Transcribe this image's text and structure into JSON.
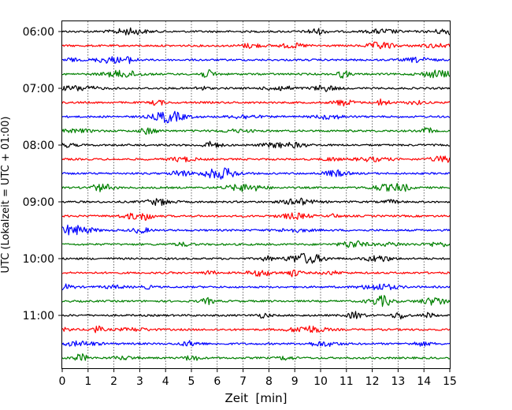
{
  "chart_data": {
    "type": "line",
    "title": "",
    "xlabel": "Zeit  [min]",
    "ylabel": "UTC (Lokalzeit = UTC + 01:00)",
    "xlim": [
      0,
      15
    ],
    "x_ticks": [
      0,
      1,
      2,
      3,
      4,
      5,
      6,
      7,
      8,
      9,
      10,
      11,
      12,
      13,
      14,
      15
    ],
    "y_ticks": [
      "06:00",
      "07:00",
      "08:00",
      "09:00",
      "10:00",
      "11:00"
    ],
    "grid": "vertical dotted at each minute",
    "trace_interval_min": 15,
    "trace_colors": [
      "#000000",
      "#ff0000",
      "#0000ff",
      "#008000"
    ],
    "traces": [
      {
        "start": "06:00",
        "color": "#000000"
      },
      {
        "start": "06:15",
        "color": "#ff0000"
      },
      {
        "start": "06:30",
        "color": "#0000ff"
      },
      {
        "start": "06:45",
        "color": "#008000"
      },
      {
        "start": "07:00",
        "color": "#000000"
      },
      {
        "start": "07:15",
        "color": "#ff0000"
      },
      {
        "start": "07:30",
        "color": "#0000ff"
      },
      {
        "start": "07:45",
        "color": "#008000"
      },
      {
        "start": "08:00",
        "color": "#000000"
      },
      {
        "start": "08:15",
        "color": "#ff0000"
      },
      {
        "start": "08:30",
        "color": "#0000ff"
      },
      {
        "start": "08:45",
        "color": "#008000"
      },
      {
        "start": "09:00",
        "color": "#000000"
      },
      {
        "start": "09:15",
        "color": "#ff0000"
      },
      {
        "start": "09:30",
        "color": "#0000ff"
      },
      {
        "start": "09:45",
        "color": "#008000"
      },
      {
        "start": "10:00",
        "color": "#000000"
      },
      {
        "start": "10:15",
        "color": "#ff0000"
      },
      {
        "start": "10:30",
        "color": "#0000ff"
      },
      {
        "start": "10:45",
        "color": "#008000"
      },
      {
        "start": "11:00",
        "color": "#000000"
      },
      {
        "start": "11:15",
        "color": "#ff0000"
      },
      {
        "start": "11:30",
        "color": "#0000ff"
      },
      {
        "start": "11:45",
        "color": "#008000"
      }
    ]
  }
}
